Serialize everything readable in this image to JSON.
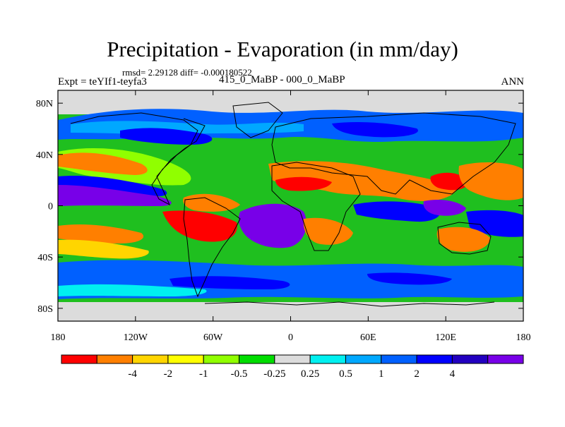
{
  "title": "Precipitation - Evaporation (in mm/day)",
  "stats_text": "rmsd= 2.29128 diff= -0.000180522",
  "left_label": "Expt = teYIf1-teyfa3",
  "center_label": "415_0_MaBP - 000_0_MaBP",
  "right_label": "ANN",
  "x_ticks": [
    "180",
    "120W",
    "60W",
    "0",
    "60E",
    "120E",
    "180"
  ],
  "y_ticks": [
    "80N",
    "40N",
    "0",
    "40S",
    "80S"
  ],
  "colorbar": {
    "colors": [
      "#ff0000",
      "#ff7f00",
      "#ffd500",
      "#ffff00",
      "#90ff00",
      "#00dd00",
      "#dcdcdc",
      "#00f0f0",
      "#00a8ff",
      "#0060ff",
      "#0000ff",
      "#2200c0",
      "#7800e8"
    ],
    "labels": [
      "-4",
      "-2",
      "-1",
      "-0.5",
      "-0.25",
      "0.25",
      "0.5",
      "1",
      "2",
      "4"
    ]
  }
}
